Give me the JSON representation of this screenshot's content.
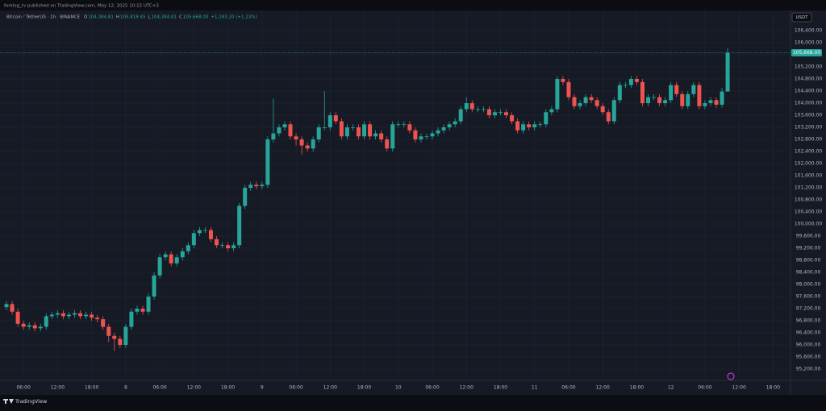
{
  "page": {
    "published": "forklog_tv published on TradingView.com, May 12, 2025 10:15 UTC+3",
    "brand": "TradingView"
  },
  "chart_data": {
    "type": "candlestick",
    "header": {
      "symbol": "Bitcoin / TetherUS · 1h · BINANCE",
      "ohlc": [
        {
          "key": "O",
          "value": "104,384.81"
        },
        {
          "key": "H",
          "value": "105,819.45"
        },
        {
          "key": "L",
          "value": "104,384.81"
        },
        {
          "key": "C",
          "value": "105,668.00"
        }
      ],
      "change": "+1,283.20 (+1.23%)"
    },
    "currency": "USDT",
    "up_color": "#26a69a",
    "down_color": "#ef5350",
    "grid": true,
    "last_price": {
      "value": 105668,
      "label": "105,668.00"
    },
    "open": [
      97250,
      97350,
      97100,
      96700,
      96600,
      96650,
      96550,
      96600,
      96950,
      97000,
      97050,
      96950,
      97000,
      97050,
      96950,
      97000,
      96900,
      96850,
      96600,
      96300,
      96200,
      96000,
      96600,
      97100,
      97200,
      97100,
      97600,
      98300,
      98900,
      99000,
      98700,
      98900,
      99100,
      99300,
      99700,
      99800,
      99800,
      99500,
      99300,
      99300,
      99200,
      99300,
      100600,
      101200,
      101300,
      101250,
      101300,
      102800,
      103000,
      103200,
      103300,
      102900,
      102800,
      102600,
      102500,
      102800,
      103200,
      103200,
      103600,
      103400,
      102900,
      103200,
      103200,
      102900,
      103300,
      102900,
      103000,
      102800,
      102500,
      103300,
      103300,
      103300,
      103100,
      102800,
      102900,
      102900,
      103000,
      103100,
      103200,
      103300,
      103400,
      103800,
      104000,
      103800,
      103800,
      103800,
      103600,
      103700,
      103700,
      103600,
      103400,
      103100,
      103300,
      103200,
      103300,
      103300,
      103700,
      103800,
      104800,
      104700,
      104200,
      103900,
      104000,
      104200,
      104100,
      103900,
      103700,
      103400,
      104100,
      104600,
      104600,
      104800,
      104700,
      104000,
      104200,
      104200,
      104000,
      104100,
      104600,
      104300,
      103900,
      104300,
      104600,
      103900,
      104000,
      104100,
      103950,
      104384.81
    ],
    "high": [
      97450,
      97450,
      97200,
      96800,
      96750,
      96750,
      96700,
      97050,
      97100,
      97150,
      97150,
      97100,
      97150,
      97150,
      97100,
      97100,
      97000,
      96950,
      96700,
      96400,
      96300,
      96700,
      97200,
      97300,
      97300,
      97700,
      98400,
      99000,
      99100,
      99100,
      99000,
      99200,
      99400,
      99800,
      99900,
      99900,
      99900,
      99600,
      99400,
      99400,
      99400,
      100700,
      101300,
      101400,
      101400,
      101400,
      102900,
      104150,
      103300,
      103400,
      103400,
      103000,
      102900,
      102700,
      102900,
      103300,
      104400,
      103700,
      103700,
      103500,
      103300,
      103300,
      103300,
      103400,
      103400,
      103100,
      103100,
      102900,
      103400,
      103400,
      103400,
      103400,
      103200,
      103000,
      103000,
      103100,
      103200,
      103300,
      103400,
      103500,
      103900,
      104200,
      104100,
      103900,
      103900,
      103900,
      103800,
      103800,
      103800,
      103700,
      103500,
      103400,
      103400,
      103400,
      103400,
      103800,
      103900,
      104900,
      104900,
      104800,
      104300,
      104100,
      104300,
      104300,
      104200,
      104000,
      103800,
      104200,
      104700,
      104700,
      104900,
      104900,
      104800,
      104300,
      104300,
      104300,
      104200,
      104700,
      104700,
      104400,
      104400,
      104700,
      104700,
      104100,
      104200,
      104200,
      104500,
      105819.45
    ],
    "low": [
      97150,
      97000,
      96600,
      96500,
      96500,
      96450,
      96450,
      96500,
      96850,
      96900,
      96850,
      96850,
      96900,
      96850,
      96850,
      96800,
      96750,
      96500,
      96100,
      95800,
      95900,
      95900,
      96500,
      97000,
      97000,
      97000,
      97500,
      98200,
      98800,
      98600,
      98600,
      98800,
      99000,
      99200,
      99600,
      99700,
      99400,
      99200,
      99200,
      99100,
      99100,
      99200,
      100500,
      101100,
      101150,
      101150,
      101200,
      102700,
      102900,
      103100,
      102800,
      102600,
      102300,
      102400,
      102400,
      102700,
      103100,
      103100,
      103300,
      102800,
      102800,
      103100,
      102800,
      102800,
      102800,
      102800,
      102700,
      102400,
      102400,
      103200,
      103200,
      103000,
      102700,
      102700,
      102800,
      102800,
      102900,
      103000,
      103100,
      103200,
      103300,
      103700,
      103700,
      103700,
      103700,
      103500,
      103500,
      103600,
      103500,
      103300,
      103000,
      103000,
      103100,
      103100,
      103200,
      103200,
      103600,
      103700,
      104600,
      104100,
      103800,
      103800,
      103900,
      104000,
      103800,
      103600,
      103300,
      103300,
      104000,
      104500,
      104500,
      104600,
      103900,
      103900,
      104100,
      103900,
      103900,
      104000,
      104200,
      103800,
      103800,
      104200,
      103800,
      103800,
      103900,
      103850,
      103850,
      104384.81
    ],
    "close": [
      97350,
      97100,
      96700,
      96600,
      96650,
      96550,
      96600,
      96950,
      97000,
      97050,
      96950,
      97000,
      97050,
      96950,
      97000,
      96900,
      96850,
      96600,
      96300,
      96200,
      96000,
      96600,
      97100,
      97200,
      97100,
      97600,
      98300,
      98900,
      99000,
      98700,
      98900,
      99100,
      99300,
      99700,
      99800,
      99800,
      99500,
      99300,
      99300,
      99200,
      99300,
      100600,
      101200,
      101300,
      101250,
      101300,
      102800,
      103000,
      103200,
      103300,
      102900,
      102800,
      102600,
      102500,
      102800,
      103200,
      103200,
      103600,
      103400,
      102900,
      103200,
      103200,
      102900,
      103300,
      102900,
      103000,
      102800,
      102500,
      103300,
      103300,
      103300,
      103100,
      102800,
      102900,
      102900,
      103000,
      103100,
      103200,
      103300,
      103400,
      103800,
      104000,
      103800,
      103800,
      103800,
      103600,
      103700,
      103700,
      103600,
      103400,
      103100,
      103300,
      103200,
      103300,
      103300,
      103700,
      103800,
      104800,
      104700,
      104200,
      103900,
      104000,
      104200,
      104100,
      103900,
      103700,
      103400,
      104100,
      104600,
      104600,
      104800,
      104700,
      104000,
      104200,
      104200,
      104000,
      104100,
      104600,
      104300,
      103900,
      104300,
      104600,
      103900,
      104000,
      104100,
      103950,
      104384.81,
      105668
    ],
    "xlim": [
      -1.14,
      138.07
    ],
    "xticks": [
      {
        "value": 3,
        "label": "06:00"
      },
      {
        "value": 9,
        "label": "12:00"
      },
      {
        "value": 15,
        "label": "18:00"
      },
      {
        "value": 21,
        "label": "8"
      },
      {
        "value": 27,
        "label": "06:00"
      },
      {
        "value": 33,
        "label": "12:00"
      },
      {
        "value": 39,
        "label": "18:00"
      },
      {
        "value": 45,
        "label": "9"
      },
      {
        "value": 51,
        "label": "06:00"
      },
      {
        "value": 57,
        "label": "12:00"
      },
      {
        "value": 63,
        "label": "18:00"
      },
      {
        "value": 69,
        "label": "10"
      },
      {
        "value": 75,
        "label": "06:00"
      },
      {
        "value": 81,
        "label": "12:00"
      },
      {
        "value": 87,
        "label": "18:00"
      },
      {
        "value": 93,
        "label": "11"
      },
      {
        "value": 99,
        "label": "06:00"
      },
      {
        "value": 105,
        "label": "12:00"
      },
      {
        "value": 111,
        "label": "18:00"
      },
      {
        "value": 117,
        "label": "12"
      },
      {
        "value": 123,
        "label": "06:00"
      },
      {
        "value": 129,
        "label": "12:00"
      },
      {
        "value": 135,
        "label": "18:00"
      }
    ],
    "ylim": [
      94827,
      107067
    ],
    "yticks": [
      {
        "value": 95200,
        "label": "95,200.00"
      },
      {
        "value": 95600,
        "label": "95,600.00"
      },
      {
        "value": 96000,
        "label": "96,000.00"
      },
      {
        "value": 96400,
        "label": "96,400.00"
      },
      {
        "value": 96800,
        "label": "96,800.00"
      },
      {
        "value": 97200,
        "label": "97,200.00"
      },
      {
        "value": 97600,
        "label": "97,600.00"
      },
      {
        "value": 98000,
        "label": "98,000.00"
      },
      {
        "value": 98400,
        "label": "98,400.00"
      },
      {
        "value": 98800,
        "label": "98,800.00"
      },
      {
        "value": 99200,
        "label": "99,200.00"
      },
      {
        "value": 99600,
        "label": "99,600.00"
      },
      {
        "value": 100000,
        "label": "100,000.00"
      },
      {
        "value": 100400,
        "label": "100,400.00"
      },
      {
        "value": 100800,
        "label": "100,800.00"
      },
      {
        "value": 101200,
        "label": "101,200.00"
      },
      {
        "value": 101600,
        "label": "101,600.00"
      },
      {
        "value": 102000,
        "label": "102,000.00"
      },
      {
        "value": 102400,
        "label": "102,400.00"
      },
      {
        "value": 102800,
        "label": "102,800.00"
      },
      {
        "value": 103200,
        "label": "103,200.00"
      },
      {
        "value": 103600,
        "label": "103,600.00"
      },
      {
        "value": 104000,
        "label": "104,000.00"
      },
      {
        "value": 104400,
        "label": "104,400.00"
      },
      {
        "value": 104800,
        "label": "104,800.00"
      },
      {
        "value": 105200,
        "label": "105,200.00"
      },
      {
        "value": 105600,
        "label": "105,600.00"
      },
      {
        "value": 106000,
        "label": "106,000.00"
      },
      {
        "value": 106400,
        "label": "106,400.00"
      }
    ]
  }
}
